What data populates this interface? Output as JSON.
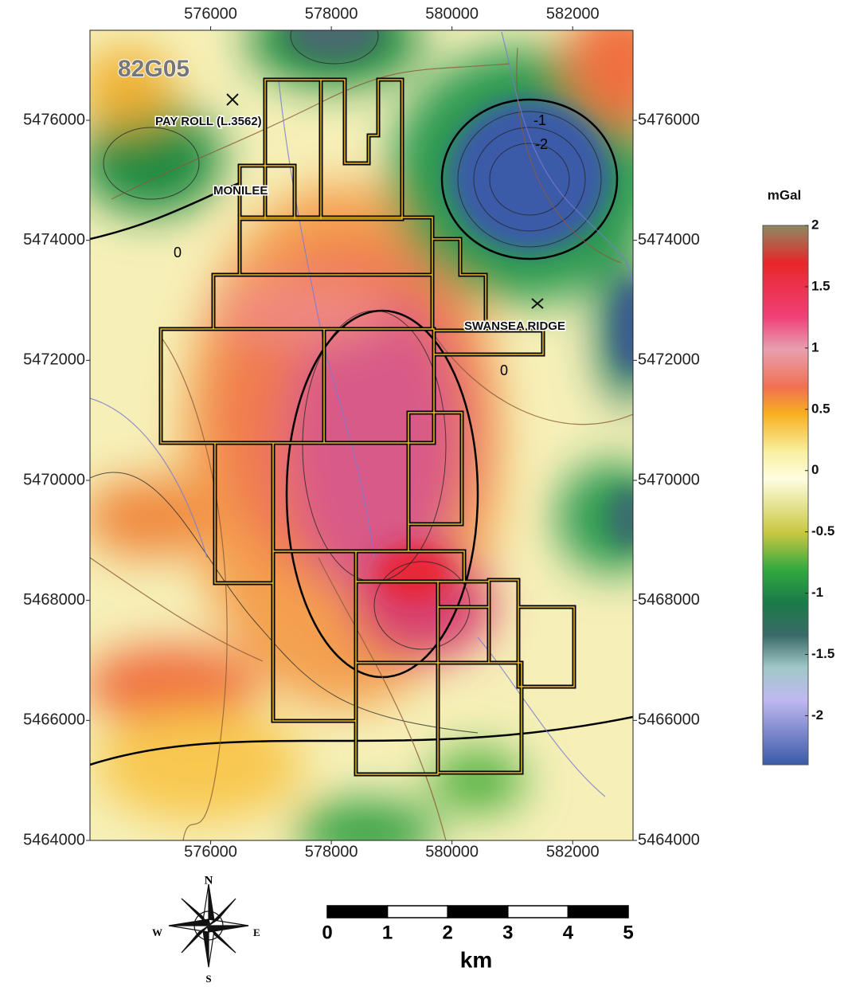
{
  "map": {
    "sheet": "82G05",
    "xlim": [
      574000,
      583000
    ],
    "ylim": [
      5464000,
      5477500
    ],
    "xticks": [
      576000,
      578000,
      580000,
      582000
    ],
    "yticks": [
      5464000,
      5466000,
      5468000,
      5470000,
      5472000,
      5474000,
      5476000
    ],
    "places": [
      "PAY ROLL (L.3562)",
      "MONILEE",
      "SWANSEA RIDGE"
    ],
    "contour_labels": [
      "-1",
      "-2",
      "0",
      "0"
    ]
  },
  "colorbar": {
    "title": "mGal",
    "lim": [
      -2.4,
      2
    ],
    "ticks": [
      2,
      1.5,
      1,
      0.5,
      0,
      -0.5,
      -1,
      -1.5,
      -2
    ]
  },
  "scalebar": {
    "unit": "km",
    "ticks": [
      0,
      1,
      2,
      3,
      4,
      5
    ]
  },
  "compass": {
    "north": "N",
    "east": "E",
    "south": "S",
    "west": "W"
  }
}
